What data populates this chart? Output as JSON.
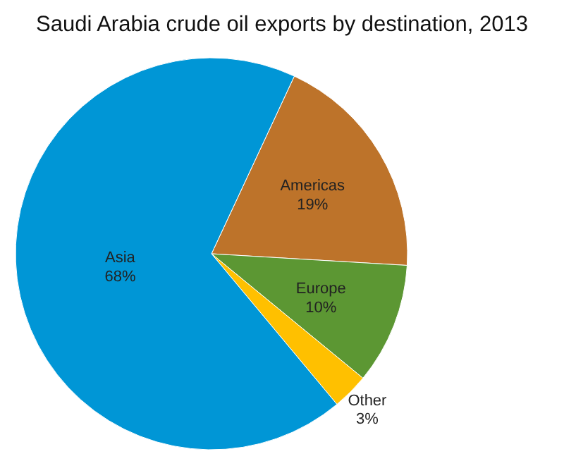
{
  "chart_data": {
    "type": "pie",
    "title": "Saudi Arabia crude oil exports by destination, 2013",
    "categories": [
      "Americas",
      "Europe",
      "Other",
      "Asia"
    ],
    "values": [
      19,
      10,
      3,
      68
    ],
    "colors": [
      "#bd732a",
      "#5c9733",
      "#ffc000",
      "#0096d6"
    ],
    "value_labels": [
      "19%",
      "10%",
      "3%",
      "68%"
    ]
  }
}
